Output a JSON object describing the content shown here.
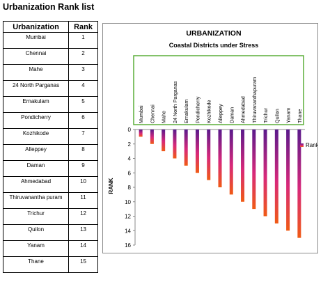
{
  "page": {
    "title": "Urbanization Rank list"
  },
  "table": {
    "headers": [
      "Urbanization",
      "Rank"
    ],
    "rows": [
      {
        "name": "Mumbai",
        "rank": "1"
      },
      {
        "name": "Chennai",
        "rank": "2"
      },
      {
        "name": "Mahe",
        "rank": "3"
      },
      {
        "name": "24 North Parganas",
        "rank": "4"
      },
      {
        "name": "Ernakulam",
        "rank": "5"
      },
      {
        "name": "Pondicherry",
        "rank": "6"
      },
      {
        "name": "Kozhikode",
        "rank": "7"
      },
      {
        "name": "Alleppey",
        "rank": "8"
      },
      {
        "name": "Daman",
        "rank": "9"
      },
      {
        "name": "Ahmedabad",
        "rank": "10"
      },
      {
        "name": "Thiruvanantha puram",
        "rank": "11"
      },
      {
        "name": "Trichur",
        "rank": "12"
      },
      {
        "name": "Quilon",
        "rank": "13"
      },
      {
        "name": "Yanam",
        "rank": "14"
      },
      {
        "name": "Thane",
        "rank": "15"
      }
    ]
  },
  "chart_data": {
    "type": "bar",
    "title": "URBANIZATION",
    "subtitle": "Coastal Districts under Stress",
    "categories": [
      "Mumbai",
      "Chennai",
      "Mahe",
      "24 North Parganas",
      "Ernakulam",
      "Pondicherry",
      "Kozhikode",
      "Alleppey",
      "Daman",
      "Ahmedabad",
      "Thiruvananthapuram",
      "Trichur",
      "Quilon",
      "Yanam",
      "Thane"
    ],
    "series": [
      {
        "name": "Rank",
        "values": [
          1,
          2,
          3,
          4,
          5,
          6,
          7,
          8,
          9,
          10,
          11,
          12,
          13,
          14,
          15
        ]
      }
    ],
    "xlabel": "",
    "ylabel": "RANK",
    "ylim": [
      0,
      16
    ],
    "y_axis_reversed": true,
    "yticks": [
      0,
      2,
      4,
      6,
      8,
      10,
      12,
      14,
      16
    ],
    "x_tick_position": "top",
    "grid": false,
    "legend_position": "right",
    "colors": {
      "bar_top": "#5a1a8c",
      "bar_mid": "#d8287a",
      "bar_bottom": "#f05a14",
      "label_box_border": "#5aae38"
    }
  }
}
